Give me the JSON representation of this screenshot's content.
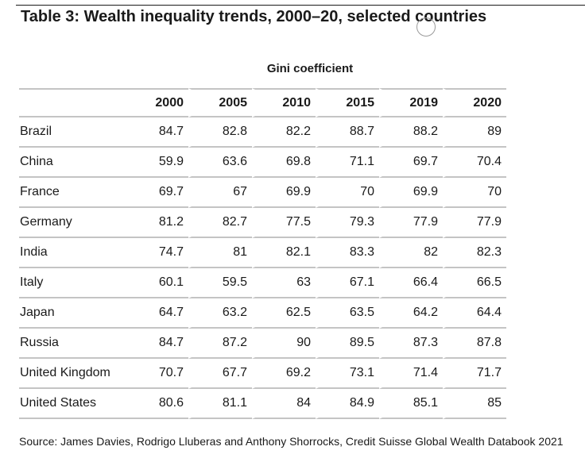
{
  "title": "Table 3: Wealth inequality trends, 2000–20, selected countries",
  "group_header": "Gini coefficient",
  "table": {
    "years": [
      "2000",
      "2005",
      "2010",
      "2015",
      "2019",
      "2020"
    ],
    "rows": [
      {
        "country": "Brazil",
        "values": [
          "84.7",
          "82.8",
          "82.2",
          "88.7",
          "88.2",
          "89"
        ]
      },
      {
        "country": "China",
        "values": [
          "59.9",
          "63.6",
          "69.8",
          "71.1",
          "69.7",
          "70.4"
        ]
      },
      {
        "country": "France",
        "values": [
          "69.7",
          "67",
          "69.9",
          "70",
          "69.9",
          "70"
        ]
      },
      {
        "country": "Germany",
        "values": [
          "81.2",
          "82.7",
          "77.5",
          "79.3",
          "77.9",
          "77.9"
        ]
      },
      {
        "country": "India",
        "values": [
          "74.7",
          "81",
          "82.1",
          "83.3",
          "82",
          "82.3"
        ]
      },
      {
        "country": "Italy",
        "values": [
          "60.1",
          "59.5",
          "63",
          "67.1",
          "66.4",
          "66.5"
        ]
      },
      {
        "country": "Japan",
        "values": [
          "64.7",
          "63.2",
          "62.5",
          "63.5",
          "64.2",
          "64.4"
        ]
      },
      {
        "country": "Russia",
        "values": [
          "84.7",
          "87.2",
          "90",
          "89.5",
          "87.3",
          "87.8"
        ]
      },
      {
        "country": "United Kingdom",
        "values": [
          "70.7",
          "67.7",
          "69.2",
          "73.1",
          "71.4",
          "71.7"
        ]
      },
      {
        "country": "United States",
        "values": [
          "80.6",
          "81.1",
          "84",
          "84.9",
          "85.1",
          "85"
        ]
      }
    ]
  },
  "source": "Source: James Davies, Rodrigo Lluberas and Anthony Shorrocks, Credit Suisse Global Wealth Databook 2021"
}
